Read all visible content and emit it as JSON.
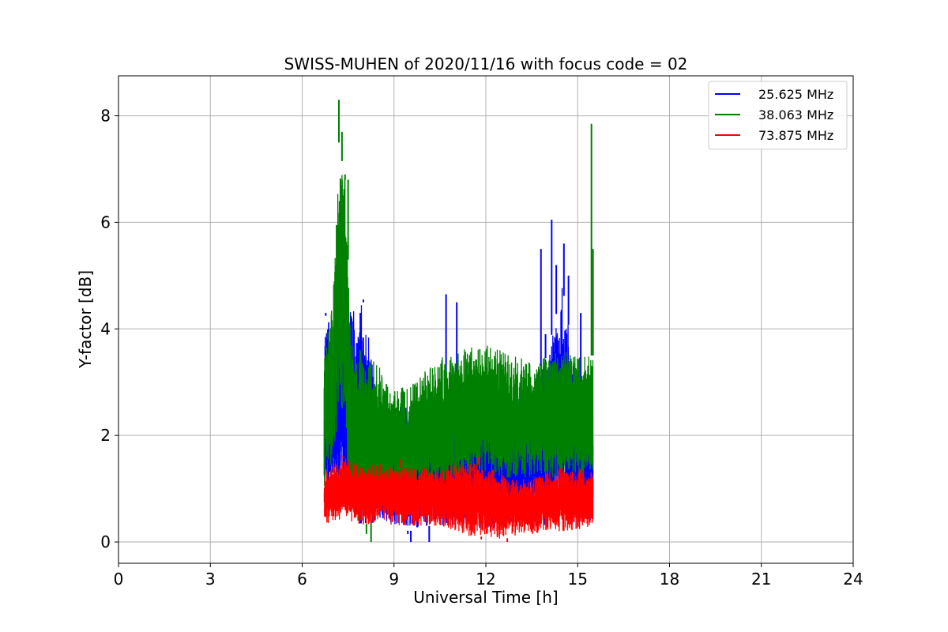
{
  "chart_data": {
    "type": "line",
    "title": "SWISS-MUHEN of 2020/11/16 with focus code = 02",
    "xlabel": "Universal Time [h]",
    "ylabel": "Y-factor [dB]",
    "xlim": [
      0,
      24
    ],
    "ylim": [
      -0.4,
      8.75
    ],
    "xticks": [
      0,
      3,
      6,
      9,
      12,
      15,
      18,
      21,
      24
    ],
    "yticks": [
      0,
      2,
      4,
      6,
      8
    ],
    "grid": true,
    "legend_position": "top-right",
    "x_start": 6.72,
    "x_end": 15.5,
    "series": [
      {
        "name": "25.625 MHz",
        "color": "#0000ff",
        "envelope": [
          {
            "x": 6.72,
            "low": 0.7,
            "high": 4.3
          },
          {
            "x": 7.0,
            "low": 0.8,
            "high": 4.0
          },
          {
            "x": 7.3,
            "low": 0.6,
            "high": 4.7
          },
          {
            "x": 7.6,
            "low": 0.5,
            "high": 4.4
          },
          {
            "x": 8.0,
            "low": 0.3,
            "high": 4.5
          },
          {
            "x": 8.5,
            "low": 0.4,
            "high": 2.6
          },
          {
            "x": 9.0,
            "low": 0.3,
            "high": 2.5
          },
          {
            "x": 9.5,
            "low": 0.2,
            "high": 2.6
          },
          {
            "x": 10.0,
            "low": 0.3,
            "high": 2.7
          },
          {
            "x": 10.5,
            "low": 0.3,
            "high": 2.8
          },
          {
            "x": 11.0,
            "low": 0.3,
            "high": 2.8
          },
          {
            "x": 11.5,
            "low": 0.3,
            "high": 2.8
          },
          {
            "x": 12.0,
            "low": 0.2,
            "high": 2.8
          },
          {
            "x": 12.5,
            "low": 0.2,
            "high": 2.7
          },
          {
            "x": 13.0,
            "low": 0.3,
            "high": 2.7
          },
          {
            "x": 13.5,
            "low": 0.3,
            "high": 3.0
          },
          {
            "x": 14.0,
            "low": 0.3,
            "high": 3.5
          },
          {
            "x": 14.5,
            "low": 0.4,
            "high": 4.8
          },
          {
            "x": 15.0,
            "low": 0.3,
            "high": 3.0
          },
          {
            "x": 15.5,
            "low": 0.4,
            "high": 2.1
          }
        ],
        "spikes": [
          {
            "x": 6.77,
            "y": 4.3
          },
          {
            "x": 7.2,
            "y": 4.75
          },
          {
            "x": 7.45,
            "y": 4.45
          },
          {
            "x": 7.9,
            "y": 4.3
          },
          {
            "x": 8.0,
            "y": 4.55
          },
          {
            "x": 8.3,
            "y": 3.1
          },
          {
            "x": 10.7,
            "y": 4.65
          },
          {
            "x": 11.05,
            "y": 4.5
          },
          {
            "x": 13.8,
            "y": 5.5
          },
          {
            "x": 13.95,
            "y": 3.9
          },
          {
            "x": 14.15,
            "y": 6.05
          },
          {
            "x": 14.3,
            "y": 5.2
          },
          {
            "x": 14.55,
            "y": 5.6
          },
          {
            "x": 14.7,
            "y": 5.0
          },
          {
            "x": 15.1,
            "y": 4.3
          },
          {
            "x": 9.55,
            "y": 0.0
          },
          {
            "x": 10.15,
            "y": 0.0
          },
          {
            "x": 9.45,
            "y": 0.15
          }
        ]
      },
      {
        "name": "38.063 MHz",
        "color": "#008000",
        "envelope": [
          {
            "x": 6.72,
            "low": 1.0,
            "high": 3.8
          },
          {
            "x": 7.0,
            "low": 1.4,
            "high": 4.5
          },
          {
            "x": 7.2,
            "low": 2.5,
            "high": 7.5
          },
          {
            "x": 7.4,
            "low": 2.0,
            "high": 6.8
          },
          {
            "x": 7.6,
            "low": 0.5,
            "high": 3.8
          },
          {
            "x": 8.0,
            "low": 0.3,
            "high": 3.6
          },
          {
            "x": 8.5,
            "low": 0.5,
            "high": 3.3
          },
          {
            "x": 9.0,
            "low": 0.8,
            "high": 2.9
          },
          {
            "x": 9.5,
            "low": 0.9,
            "high": 2.9
          },
          {
            "x": 10.0,
            "low": 1.0,
            "high": 3.2
          },
          {
            "x": 10.5,
            "low": 1.0,
            "high": 3.5
          },
          {
            "x": 11.0,
            "low": 1.1,
            "high": 3.5
          },
          {
            "x": 11.5,
            "low": 1.2,
            "high": 3.7
          },
          {
            "x": 12.0,
            "low": 1.2,
            "high": 3.7
          },
          {
            "x": 12.5,
            "low": 1.2,
            "high": 3.6
          },
          {
            "x": 13.0,
            "low": 1.2,
            "high": 3.5
          },
          {
            "x": 13.5,
            "low": 1.2,
            "high": 3.4
          },
          {
            "x": 14.0,
            "low": 1.2,
            "high": 3.5
          },
          {
            "x": 14.5,
            "low": 1.2,
            "high": 3.6
          },
          {
            "x": 15.0,
            "low": 1.2,
            "high": 3.5
          },
          {
            "x": 15.5,
            "low": 1.3,
            "high": 3.5
          }
        ],
        "spikes": [
          {
            "x": 7.2,
            "y": 8.3
          },
          {
            "x": 7.3,
            "y": 7.7
          },
          {
            "x": 7.4,
            "y": 6.9
          },
          {
            "x": 7.5,
            "y": 6.8
          },
          {
            "x": 15.45,
            "y": 7.85
          },
          {
            "x": 15.5,
            "y": 5.5
          },
          {
            "x": 8.25,
            "y": 0.0
          },
          {
            "x": 8.1,
            "y": 0.15
          }
        ]
      },
      {
        "name": "73.875 MHz",
        "color": "#ff0000",
        "envelope": [
          {
            "x": 6.72,
            "low": 0.3,
            "high": 1.3
          },
          {
            "x": 7.0,
            "low": 0.4,
            "high": 1.5
          },
          {
            "x": 7.5,
            "low": 0.4,
            "high": 1.6
          },
          {
            "x": 8.0,
            "low": 0.3,
            "high": 1.4
          },
          {
            "x": 8.5,
            "low": 0.4,
            "high": 1.5
          },
          {
            "x": 9.0,
            "low": 0.3,
            "high": 1.4
          },
          {
            "x": 9.5,
            "low": 0.3,
            "high": 1.4
          },
          {
            "x": 10.0,
            "low": 0.3,
            "high": 1.4
          },
          {
            "x": 10.5,
            "low": 0.3,
            "high": 1.4
          },
          {
            "x": 11.0,
            "low": 0.2,
            "high": 1.5
          },
          {
            "x": 11.5,
            "low": 0.1,
            "high": 1.5
          },
          {
            "x": 12.0,
            "low": 0.1,
            "high": 1.4
          },
          {
            "x": 12.5,
            "low": 0.05,
            "high": 1.3
          },
          {
            "x": 13.0,
            "low": 0.1,
            "high": 1.2
          },
          {
            "x": 13.5,
            "low": 0.15,
            "high": 1.2
          },
          {
            "x": 14.0,
            "low": 0.2,
            "high": 1.3
          },
          {
            "x": 14.5,
            "low": 0.2,
            "high": 1.4
          },
          {
            "x": 15.0,
            "low": 0.2,
            "high": 1.4
          },
          {
            "x": 15.5,
            "low": 0.3,
            "high": 1.3
          }
        ],
        "spikes": [
          {
            "x": 7.3,
            "y": 1.62
          },
          {
            "x": 9.2,
            "y": 1.55
          },
          {
            "x": 11.75,
            "y": 1.6
          },
          {
            "x": 12.7,
            "y": 0.0
          },
          {
            "x": 11.85,
            "y": 0.05
          }
        ]
      }
    ]
  }
}
